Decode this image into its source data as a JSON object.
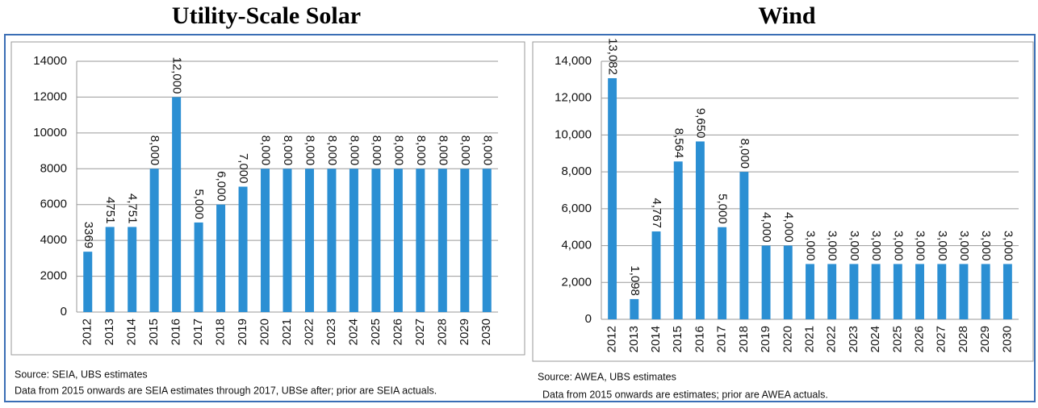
{
  "chart_data": [
    {
      "type": "bar",
      "title": "Utility-Scale Solar",
      "categories": [
        "2012",
        "2013",
        "2014",
        "2015",
        "2016",
        "2017",
        "2018",
        "2019",
        "2020",
        "2021",
        "2022",
        "2023",
        "2024",
        "2025",
        "2026",
        "2027",
        "2028",
        "2029",
        "2030"
      ],
      "values": [
        3369,
        4751,
        4751,
        8000,
        12000,
        5000,
        6000,
        7000,
        8000,
        8000,
        8000,
        8000,
        8000,
        8000,
        8000,
        8000,
        8000,
        8000,
        8000
      ],
      "value_labels": [
        "3369",
        "4751",
        "4,751",
        "8,000",
        "12,000",
        "5,000",
        "6,000",
        "7,000",
        "8,000",
        "8,000",
        "8,000",
        "8,000",
        "8,000",
        "8,000",
        "8,000",
        "8,000",
        "8,000",
        "8,000",
        "8,000"
      ],
      "color": "#2b8fd3",
      "ylim": [
        0,
        14000
      ],
      "yticks": [
        0,
        2000,
        4000,
        6000,
        8000,
        10000,
        12000,
        14000
      ],
      "grid": true,
      "source": "Source: SEIA, UBS estimates",
      "note": "Data from 2015 onwards are SEIA estimates through 2017, UBSe after; prior are SEIA actuals."
    },
    {
      "type": "bar",
      "title": "Wind",
      "categories": [
        "2012",
        "2013",
        "2014",
        "2015",
        "2016",
        "2017",
        "2018",
        "2019",
        "2020",
        "2021",
        "2022",
        "2023",
        "2024",
        "2025",
        "2026",
        "2027",
        "2028",
        "2029",
        "2030"
      ],
      "values": [
        13082,
        1098,
        4767,
        8564,
        9650,
        5000,
        8000,
        4000,
        4000,
        3000,
        3000,
        3000,
        3000,
        3000,
        3000,
        3000,
        3000,
        3000,
        3000
      ],
      "value_labels": [
        "13,082",
        "1,098",
        "4,767",
        "8,564",
        "9,650",
        "5,000",
        "8,000",
        "4,000",
        "4,000",
        "3,000",
        "3,000",
        "3,000",
        "3,000",
        "3,000",
        "3,000",
        "3,000",
        "3,000",
        "3,000",
        "3,000"
      ],
      "color": "#2b8fd3",
      "ylim": [
        0,
        14000
      ],
      "yticks": [
        0,
        {
          "value": 2000,
          "label": "2,000"
        },
        {
          "value": 4000,
          "label": "4,000"
        },
        {
          "value": 6000,
          "label": "6,000"
        },
        {
          "value": 8000,
          "label": "8,000"
        },
        {
          "value": 10000,
          "label": "10,000"
        },
        {
          "value": 12000,
          "label": "12,000"
        },
        {
          "value": 14000,
          "label": "14,000"
        }
      ],
      "grid": true,
      "source": "Source:  AWEA, UBS estimates",
      "note": "Data from 2015 onwards are estimates; prior are AWEA actuals."
    }
  ]
}
